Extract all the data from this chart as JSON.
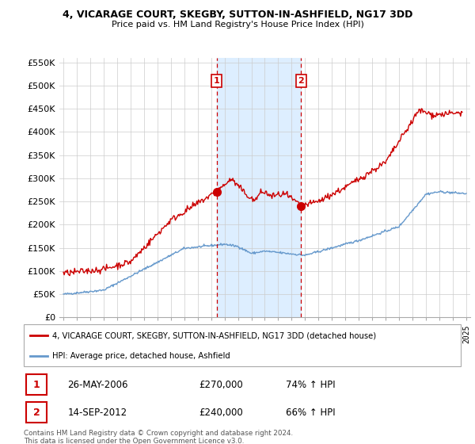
{
  "title": "4, VICARAGE COURT, SKEGBY, SUTTON-IN-ASHFIELD, NG17 3DD",
  "subtitle": "Price paid vs. HM Land Registry's House Price Index (HPI)",
  "hpi_color": "#6699cc",
  "price_color": "#cc0000",
  "vline_color": "#cc0000",
  "shade_color": "#ddeeff",
  "marker_color": "#cc0000",
  "ylim": [
    0,
    560000
  ],
  "yticks": [
    0,
    50000,
    100000,
    150000,
    200000,
    250000,
    300000,
    350000,
    400000,
    450000,
    500000,
    550000
  ],
  "sale1_date_num": 2006.42,
  "sale1_price": 270000,
  "sale1_label": "1",
  "sale2_date_num": 2012.71,
  "sale2_price": 240000,
  "sale2_label": "2",
  "legend_line1": "4, VICARAGE COURT, SKEGBY, SUTTON-IN-ASHFIELD, NG17 3DD (detached house)",
  "legend_line2": "HPI: Average price, detached house, Ashfield",
  "table_row1_num": "1",
  "table_row1_date": "26-MAY-2006",
  "table_row1_price": "£270,000",
  "table_row1_hpi": "74% ↑ HPI",
  "table_row2_num": "2",
  "table_row2_date": "14-SEP-2012",
  "table_row2_price": "£240,000",
  "table_row2_hpi": "66% ↑ HPI",
  "footer": "Contains HM Land Registry data © Crown copyright and database right 2024.\nThis data is licensed under the Open Government Licence v3.0."
}
